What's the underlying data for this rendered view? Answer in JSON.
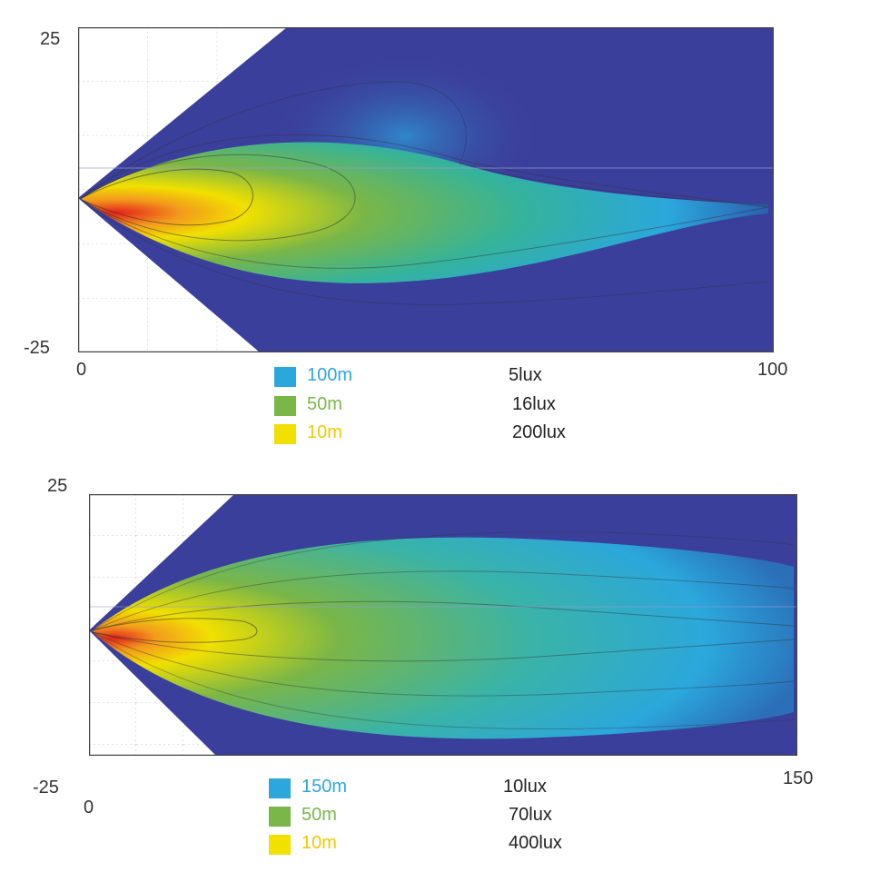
{
  "colors": {
    "background_field": "#3b3f9c",
    "wide": "#2ba7dc",
    "mid": "#7ab648",
    "near": "#f1e000",
    "hot": "#e4221a",
    "grid": "#c8c8c8"
  },
  "chart_data": [
    {
      "type": "heatmap",
      "title": "",
      "x_ticks": [
        "0",
        "100"
      ],
      "y_ticks": [
        "25",
        "-25"
      ],
      "xlim": [
        0,
        100
      ],
      "ylim": [
        -25,
        25
      ],
      "grid": true,
      "beam_length_units": 100,
      "legend": [
        {
          "distance": "100m",
          "lux": "5lux",
          "color": "#2ba7dc"
        },
        {
          "distance": "50m",
          "lux": "16lux",
          "color": "#7ab648"
        },
        {
          "distance": "10m",
          "lux": "200lux",
          "color": "#f1e000"
        }
      ]
    },
    {
      "type": "heatmap",
      "title": "",
      "x_ticks": [
        "0",
        "150"
      ],
      "y_ticks": [
        "25",
        "-25"
      ],
      "xlim": [
        0,
        150
      ],
      "ylim": [
        -25,
        25
      ],
      "grid": true,
      "beam_length_units": 150,
      "legend": [
        {
          "distance": "150m",
          "lux": "10lux",
          "color": "#2ba7dc"
        },
        {
          "distance": "50m",
          "lux": "70lux",
          "color": "#7ab648"
        },
        {
          "distance": "10m",
          "lux": "400lux",
          "color": "#f1e000"
        }
      ]
    }
  ]
}
